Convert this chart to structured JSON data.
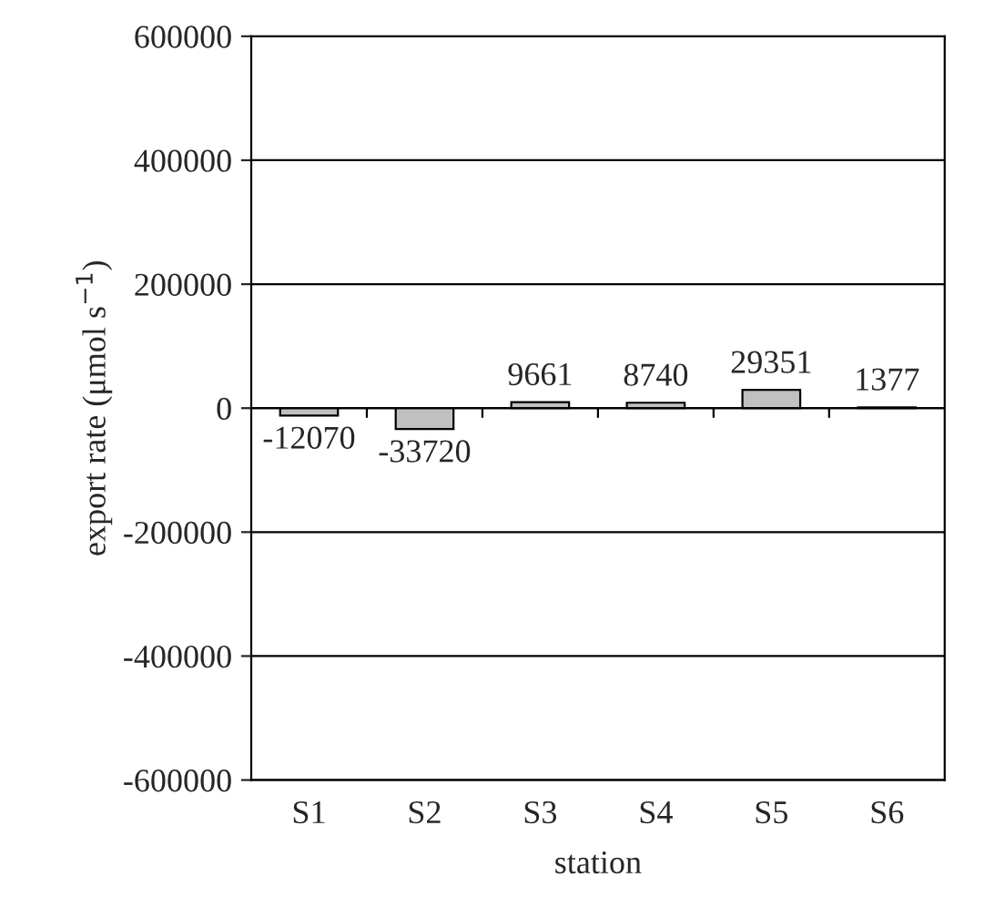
{
  "chart_data": {
    "type": "bar",
    "xlabel": "station",
    "ylabel": "export rate (μmol s$^{−1}$)",
    "categories": [
      "S1",
      "S2",
      "S3",
      "S4",
      "S5",
      "S6"
    ],
    "values": [
      -12070,
      -33720,
      9661,
      8740,
      29351,
      1377
    ],
    "color": "#c0c0c0",
    "ylim": [
      -600000,
      600000
    ],
    "yticks": [
      -600000,
      -400000,
      -200000,
      0,
      200000,
      400000,
      600000
    ],
    "grid": "y",
    "data_labels": true
  }
}
